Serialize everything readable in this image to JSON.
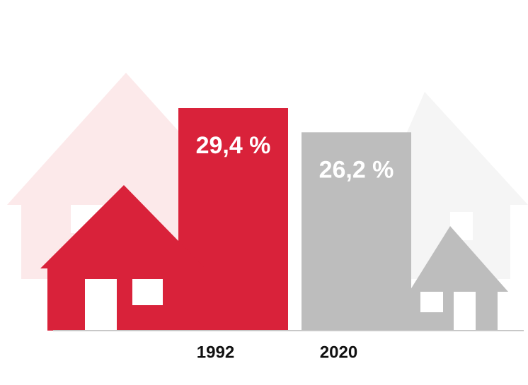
{
  "chart_data": {
    "type": "bar",
    "categories": [
      "1992",
      "2020"
    ],
    "values": [
      29.4,
      26.2
    ],
    "value_labels": [
      "29,4 %",
      "26,2 %"
    ],
    "colors": [
      "#d9223a",
      "#bdbdbd"
    ]
  }
}
